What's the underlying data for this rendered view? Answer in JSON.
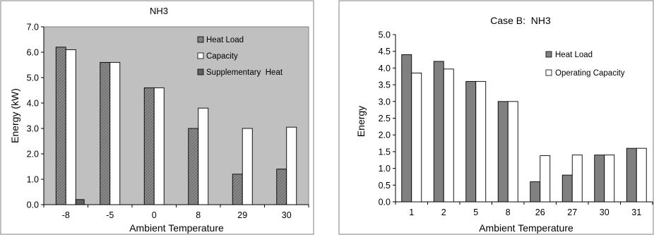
{
  "colors": {
    "heat_load": "#808080",
    "capacity": "#ffffff",
    "supplementary": "#606060",
    "plot_bg": "#c0c0c0",
    "frame": "#808080"
  },
  "chart_data": [
    {
      "type": "bar",
      "title": "NH3",
      "xlabel": "Ambient Temperature",
      "ylabel": "Energy (kW)",
      "categories": [
        "-8",
        "-5",
        "0",
        "8",
        "29",
        "30"
      ],
      "ylim": [
        0,
        7
      ],
      "y_ticks": [
        "0.0",
        "1.0",
        "2.0",
        "3.0",
        "4.0",
        "5.0",
        "6.0",
        "7.0"
      ],
      "grid": false,
      "legend_position": "right",
      "series": [
        {
          "name": "Heat Load",
          "values": [
            6.2,
            5.6,
            4.6,
            3.0,
            1.2,
            1.4
          ],
          "color": "#808080",
          "pattern": "hatched"
        },
        {
          "name": "Capacity",
          "values": [
            6.1,
            5.6,
            4.6,
            3.8,
            3.0,
            3.05
          ],
          "color": "#ffffff"
        },
        {
          "name": "Supplementary  Heat",
          "values": [
            0.2,
            0,
            0,
            0,
            0,
            0
          ],
          "color": "#606060"
        }
      ]
    },
    {
      "type": "bar",
      "title": "Case B:  NH3",
      "xlabel": "Ambient Temperature",
      "ylabel": "Energy",
      "categories": [
        "1",
        "2",
        "5",
        "8",
        "26",
        "27",
        "30",
        "31"
      ],
      "ylim": [
        0,
        5
      ],
      "y_ticks": [
        "0.0",
        "0.5",
        "1.0",
        "1.5",
        "2.0",
        "2.5",
        "3.0",
        "3.5",
        "4.0",
        "4.5",
        "5.0"
      ],
      "grid": false,
      "legend_position": "right",
      "series": [
        {
          "name": "Heat Load",
          "values": [
            4.4,
            4.2,
            3.6,
            3.0,
            0.6,
            0.8,
            1.4,
            1.6
          ],
          "color": "#808080"
        },
        {
          "name": "Operating Capacity",
          "values": [
            3.85,
            3.97,
            3.6,
            3.0,
            1.38,
            1.4,
            1.4,
            1.6
          ],
          "color": "#ffffff"
        }
      ]
    }
  ]
}
